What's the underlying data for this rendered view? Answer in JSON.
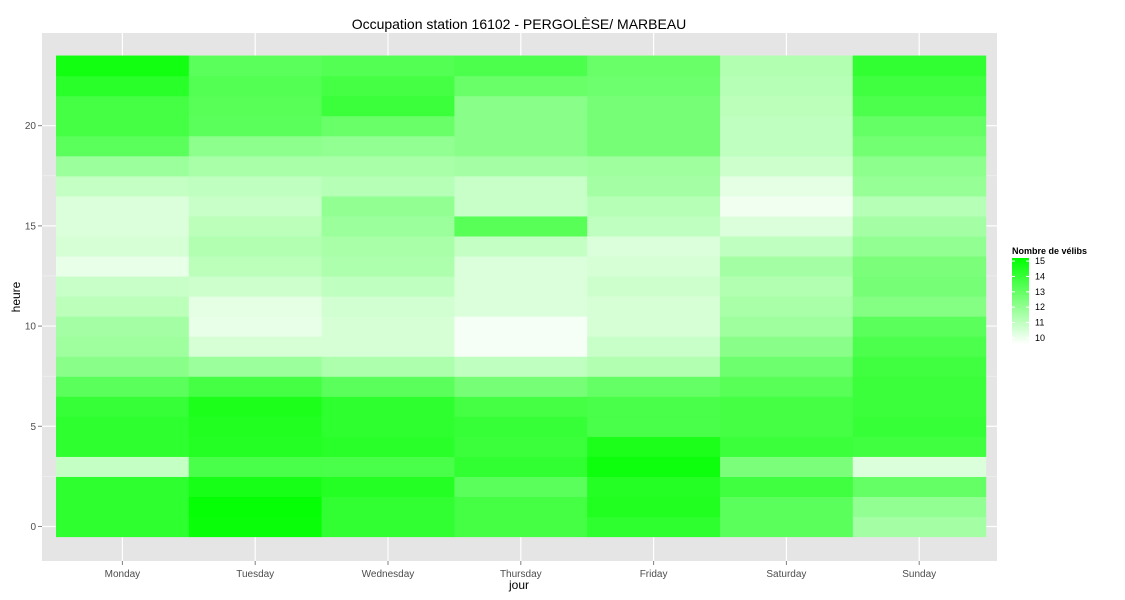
{
  "chart_data": {
    "type": "heatmap",
    "title": "Occupation station 16102 - PERGOLÈSE/ MARBEAU",
    "xlabel": "jour",
    "ylabel": "heure",
    "categories": [
      "Monday",
      "Tuesday",
      "Wednesday",
      "Thursday",
      "Friday",
      "Saturday",
      "Sunday"
    ],
    "hours": [
      0,
      1,
      2,
      3,
      4,
      5,
      6,
      7,
      8,
      9,
      10,
      11,
      12,
      13,
      14,
      15,
      16,
      17,
      18,
      19,
      20,
      21,
      22,
      23
    ],
    "yticks": [
      0,
      5,
      10,
      15,
      20
    ],
    "ylim": [
      -0.5,
      23.5
    ],
    "legend": {
      "title": "Nombre de vélibs",
      "ticks": [
        10,
        11,
        12,
        13,
        14,
        15
      ],
      "range": [
        9.6,
        15.2
      ],
      "low_color": "#ffffff",
      "high_color": "#00ff00",
      "placement": "right"
    },
    "grid": true,
    "values": [
      [
        14.2,
        14.2,
        14.2,
        10.9,
        14.2,
        14.2,
        14.0,
        13.2,
        12.2,
        11.7,
        11.6,
        11.1,
        10.8,
        10.1,
        10.5,
        10.4,
        10.4,
        10.9,
        11.8,
        13.2,
        13.7,
        13.7,
        14.3,
        14.8
      ],
      [
        15.0,
        15.1,
        14.7,
        13.6,
        14.4,
        14.5,
        14.6,
        13.7,
        11.8,
        10.5,
        10.1,
        10.2,
        10.7,
        11.1,
        11.3,
        11.1,
        10.8,
        11.0,
        11.5,
        12.1,
        13.2,
        13.3,
        13.4,
        13.2
      ],
      [
        14.1,
        14.1,
        14.4,
        13.6,
        14.3,
        14.2,
        14.2,
        13.2,
        11.4,
        10.5,
        10.5,
        10.6,
        11.0,
        11.4,
        11.5,
        11.8,
        12.0,
        11.2,
        11.5,
        12.0,
        12.9,
        13.9,
        13.7,
        13.4
      ],
      [
        13.7,
        13.7,
        13.2,
        14.1,
        13.9,
        14.0,
        13.7,
        12.6,
        11.0,
        9.8,
        9.8,
        10.4,
        10.4,
        10.4,
        10.9,
        13.3,
        10.8,
        10.8,
        11.6,
        12.2,
        12.2,
        12.2,
        12.9,
        13.5
      ],
      [
        14.2,
        14.5,
        14.4,
        14.9,
        14.6,
        13.6,
        13.6,
        13.0,
        11.3,
        10.8,
        10.5,
        10.5,
        10.7,
        10.5,
        10.4,
        11.0,
        11.2,
        11.6,
        11.7,
        12.6,
        12.6,
        12.6,
        12.8,
        12.9
      ],
      [
        13.2,
        13.2,
        13.8,
        12.5,
        13.9,
        13.7,
        13.7,
        13.3,
        12.8,
        12.2,
        11.7,
        11.5,
        11.3,
        11.6,
        11.0,
        10.4,
        9.9,
        10.2,
        10.7,
        11.0,
        11.0,
        11.1,
        11.2,
        11.3
      ],
      [
        11.6,
        12.0,
        13.0,
        10.4,
        13.8,
        14.0,
        13.9,
        13.9,
        13.8,
        13.5,
        13.2,
        12.3,
        12.6,
        12.5,
        12.0,
        11.6,
        11.2,
        11.9,
        12.1,
        12.7,
        13.0,
        13.5,
        13.8,
        14.1
      ]
    ]
  }
}
